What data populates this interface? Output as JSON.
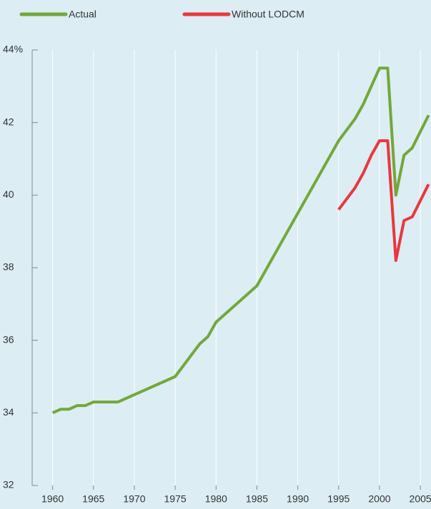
{
  "chart_data": {
    "type": "line",
    "series": [
      {
        "name": "Actual",
        "color": "#72a83a",
        "x": [
          1960,
          1961,
          1962,
          1963,
          1964,
          1965,
          1966,
          1967,
          1968,
          1975,
          1978,
          1979,
          1980,
          1985,
          1995,
          1997,
          1998,
          2000,
          2001,
          2002,
          2003,
          2004,
          2006
        ],
        "values": [
          34.0,
          34.1,
          34.1,
          34.2,
          34.2,
          34.3,
          34.3,
          34.3,
          34.3,
          35.0,
          35.9,
          36.1,
          36.5,
          37.5,
          41.5,
          42.1,
          42.5,
          43.5,
          43.5,
          40.0,
          41.1,
          41.3,
          42.2
        ]
      },
      {
        "name": "Without LODCM",
        "color": "#e8383d",
        "x": [
          1995,
          1997,
          1998,
          1999,
          2000,
          2001,
          2002,
          2003,
          2004,
          2006
        ],
        "values": [
          39.6,
          40.2,
          40.6,
          41.1,
          41.5,
          41.5,
          38.2,
          39.3,
          39.4,
          40.3
        ]
      }
    ],
    "xlim": [
      1957.5,
      2006.3
    ],
    "xticks": [
      1960,
      1965,
      1970,
      1975,
      1980,
      1985,
      1990,
      1995,
      2000,
      2005
    ],
    "ylim": [
      32,
      44
    ],
    "yticks": [
      32,
      34,
      36,
      38,
      40,
      42,
      {
        "value": 44,
        "label": "44%"
      }
    ],
    "grid": true
  }
}
